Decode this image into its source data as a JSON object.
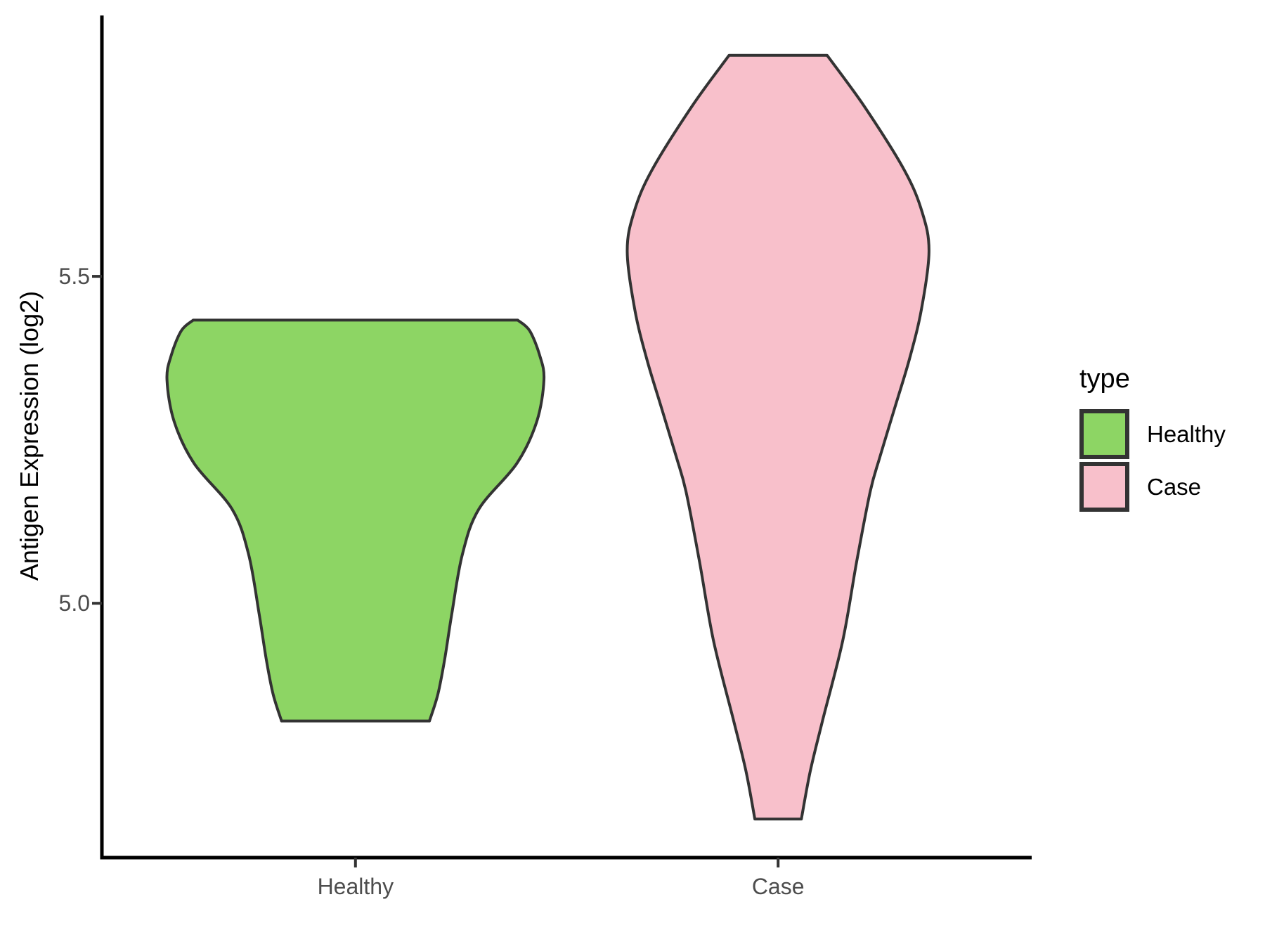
{
  "chart_data": {
    "type": "violin",
    "title": "",
    "xlabel": "",
    "ylabel": "Antigen Expression (log2)",
    "categories": [
      "Healthy",
      "Case"
    ],
    "x_positions": [
      1,
      2
    ],
    "xlim": [
      0.4,
      2.6
    ],
    "ylim": [
      4.611,
      5.899
    ],
    "yticks": [
      5.5,
      5.0
    ],
    "ytick_labels": [
      "5.5",
      "5.0"
    ],
    "grid": false,
    "colors": {
      "axis_line": "#000000",
      "tick_mark": "#333333",
      "tick_label": "#4D4D4D",
      "violin_outline": "#333333",
      "healthy_fill": "#8DD564",
      "case_fill": "#F8C0CB"
    },
    "legend": {
      "title": "type",
      "position": "right",
      "entries": [
        {
          "label": "Healthy",
          "color": "#8DD564"
        },
        {
          "label": "Case",
          "color": "#F8C0CB"
        }
      ]
    },
    "series": [
      {
        "name": "Healthy",
        "x": 1,
        "fill": "#8DD564",
        "outline": "#333333",
        "value_range": [
          4.82,
          5.43
        ],
        "profile": [
          [
            5.433,
            0.384
          ],
          [
            5.417,
            0.412
          ],
          [
            5.379,
            0.436
          ],
          [
            5.342,
            0.446
          ],
          [
            5.278,
            0.429
          ],
          [
            5.214,
            0.382
          ],
          [
            5.144,
            0.292
          ],
          [
            5.075,
            0.253
          ],
          [
            4.984,
            0.228
          ],
          [
            4.914,
            0.211
          ],
          [
            4.861,
            0.195
          ],
          [
            4.82,
            0.175
          ]
        ]
      },
      {
        "name": "Case",
        "x": 2,
        "fill": "#F8C0CB",
        "outline": "#333333",
        "value_range": [
          4.67,
          5.84
        ],
        "profile": [
          [
            5.838,
            0.116
          ],
          [
            5.759,
            0.205
          ],
          [
            5.662,
            0.299
          ],
          [
            5.598,
            0.341
          ],
          [
            5.538,
            0.357
          ],
          [
            5.449,
            0.339
          ],
          [
            5.374,
            0.311
          ],
          [
            5.299,
            0.276
          ],
          [
            5.224,
            0.241
          ],
          [
            5.171,
            0.218
          ],
          [
            5.064,
            0.186
          ],
          [
            4.943,
            0.153
          ],
          [
            4.82,
            0.105
          ],
          [
            4.743,
            0.076
          ],
          [
            4.67,
            0.055
          ]
        ]
      }
    ]
  }
}
